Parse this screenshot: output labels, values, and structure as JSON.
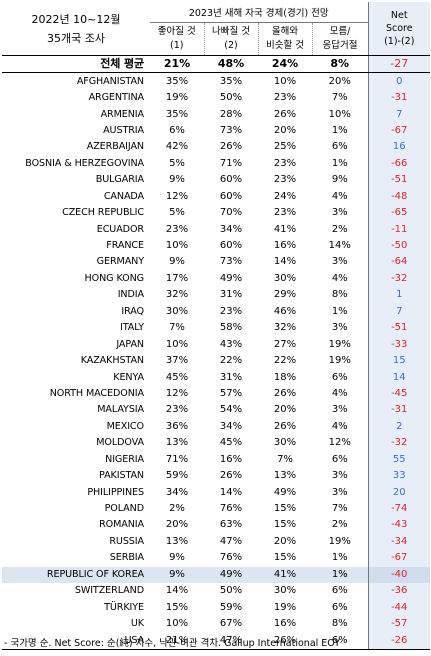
{
  "header": {
    "corner_line1": "2022년 10~12월",
    "corner_line2": "35개국 조사",
    "group_title": "2023년 새해 자국 경제(경기) 전망",
    "col1_line1": "좋아질 것",
    "col1_line2": "(1)",
    "col2_line1": "나빠질 것",
    "col2_line2": "(2)",
    "col3_line1": "올해와",
    "col3_line2": "비슷할 것",
    "col4_line1": "모름/",
    "col4_line2": "응답거절",
    "net_line1": "Net",
    "net_line2": "Score",
    "net_line3": "(1)-(2)"
  },
  "footnote": "- 국가명 순. Net Score: 순(純) 지수, 낙관-비관 격차. Gallup International EOY",
  "colors": {
    "negative": "#e0242b",
    "positive": "#3b6fd1",
    "net_bg": "#e8eef7",
    "highlight_bg": "#dce6f3"
  },
  "chart_data": {
    "type": "table",
    "columns": [
      "좋아질 것 (1)",
      "나빠질 것 (2)",
      "올해와 비슷할 것",
      "모름/응답거절",
      "Net Score (1)-(2)"
    ],
    "rows": [
      {
        "country": "전체 평균",
        "better": "21%",
        "worse": "48%",
        "same": "24%",
        "dk": "8%",
        "net": "-27",
        "avg": true
      },
      {
        "country": "AFGHANISTAN",
        "better": "35%",
        "worse": "35%",
        "same": "10%",
        "dk": "20%",
        "net": "0"
      },
      {
        "country": "ARGENTINA",
        "better": "19%",
        "worse": "50%",
        "same": "23%",
        "dk": "7%",
        "net": "-31"
      },
      {
        "country": "ARMENIA",
        "better": "35%",
        "worse": "28%",
        "same": "26%",
        "dk": "10%",
        "net": "7"
      },
      {
        "country": "AUSTRIA",
        "better": "6%",
        "worse": "73%",
        "same": "20%",
        "dk": "1%",
        "net": "-67"
      },
      {
        "country": "AZERBAIJAN",
        "better": "42%",
        "worse": "26%",
        "same": "25%",
        "dk": "6%",
        "net": "16"
      },
      {
        "country": "BOSNIA & HERZEGOVINA",
        "better": "5%",
        "worse": "71%",
        "same": "23%",
        "dk": "1%",
        "net": "-66"
      },
      {
        "country": "BULGARIA",
        "better": "9%",
        "worse": "60%",
        "same": "23%",
        "dk": "9%",
        "net": "-51"
      },
      {
        "country": "CANADA",
        "better": "12%",
        "worse": "60%",
        "same": "24%",
        "dk": "4%",
        "net": "-48"
      },
      {
        "country": "CZECH REPUBLIC",
        "better": "5%",
        "worse": "70%",
        "same": "23%",
        "dk": "3%",
        "net": "-65"
      },
      {
        "country": "ECUADOR",
        "better": "23%",
        "worse": "34%",
        "same": "41%",
        "dk": "2%",
        "net": "-11"
      },
      {
        "country": "FRANCE",
        "better": "10%",
        "worse": "60%",
        "same": "16%",
        "dk": "14%",
        "net": "-50"
      },
      {
        "country": "GERMANY",
        "better": "9%",
        "worse": "73%",
        "same": "14%",
        "dk": "3%",
        "net": "-64"
      },
      {
        "country": "HONG KONG",
        "better": "17%",
        "worse": "49%",
        "same": "30%",
        "dk": "4%",
        "net": "-32"
      },
      {
        "country": "INDIA",
        "better": "32%",
        "worse": "31%",
        "same": "29%",
        "dk": "8%",
        "net": "1"
      },
      {
        "country": "IRAQ",
        "better": "30%",
        "worse": "23%",
        "same": "46%",
        "dk": "1%",
        "net": "7"
      },
      {
        "country": "ITALY",
        "better": "7%",
        "worse": "58%",
        "same": "32%",
        "dk": "3%",
        "net": "-51"
      },
      {
        "country": "JAPAN",
        "better": "10%",
        "worse": "43%",
        "same": "27%",
        "dk": "19%",
        "net": "-33"
      },
      {
        "country": "KAZAKHSTAN",
        "better": "37%",
        "worse": "22%",
        "same": "22%",
        "dk": "19%",
        "net": "15"
      },
      {
        "country": "KENYA",
        "better": "45%",
        "worse": "31%",
        "same": "18%",
        "dk": "6%",
        "net": "14"
      },
      {
        "country": "NORTH MACEDONIA",
        "better": "12%",
        "worse": "57%",
        "same": "26%",
        "dk": "4%",
        "net": "-45"
      },
      {
        "country": "MALAYSIA",
        "better": "23%",
        "worse": "54%",
        "same": "20%",
        "dk": "3%",
        "net": "-31"
      },
      {
        "country": "MEXICO",
        "better": "36%",
        "worse": "34%",
        "same": "26%",
        "dk": "4%",
        "net": "2"
      },
      {
        "country": "MOLDOVA",
        "better": "13%",
        "worse": "45%",
        "same": "30%",
        "dk": "12%",
        "net": "-32"
      },
      {
        "country": "NIGERIA",
        "better": "71%",
        "worse": "16%",
        "same": "7%",
        "dk": "6%",
        "net": "55"
      },
      {
        "country": "PAKISTAN",
        "better": "59%",
        "worse": "26%",
        "same": "13%",
        "dk": "3%",
        "net": "33"
      },
      {
        "country": "PHILIPPINES",
        "better": "34%",
        "worse": "14%",
        "same": "49%",
        "dk": "3%",
        "net": "20"
      },
      {
        "country": "POLAND",
        "better": "2%",
        "worse": "76%",
        "same": "15%",
        "dk": "7%",
        "net": "-74"
      },
      {
        "country": "ROMANIA",
        "better": "20%",
        "worse": "63%",
        "same": "15%",
        "dk": "2%",
        "net": "-43"
      },
      {
        "country": "RUSSIA",
        "better": "13%",
        "worse": "47%",
        "same": "20%",
        "dk": "19%",
        "net": "-34"
      },
      {
        "country": "SERBIA",
        "better": "9%",
        "worse": "76%",
        "same": "15%",
        "dk": "1%",
        "net": "-67"
      },
      {
        "country": "REPUBLIC OF KOREA",
        "better": "9%",
        "worse": "49%",
        "same": "41%",
        "dk": "1%",
        "net": "-40",
        "highlight": true
      },
      {
        "country": "SWITZERLAND",
        "better": "14%",
        "worse": "50%",
        "same": "30%",
        "dk": "6%",
        "net": "-36"
      },
      {
        "country": "TÜRKIYE",
        "better": "15%",
        "worse": "59%",
        "same": "19%",
        "dk": "6%",
        "net": "-44"
      },
      {
        "country": "UK",
        "better": "10%",
        "worse": "67%",
        "same": "16%",
        "dk": "8%",
        "net": "-57"
      },
      {
        "country": "USA",
        "better": "21%",
        "worse": "47%",
        "same": "26%",
        "dk": "6%",
        "net": "-26"
      }
    ]
  }
}
